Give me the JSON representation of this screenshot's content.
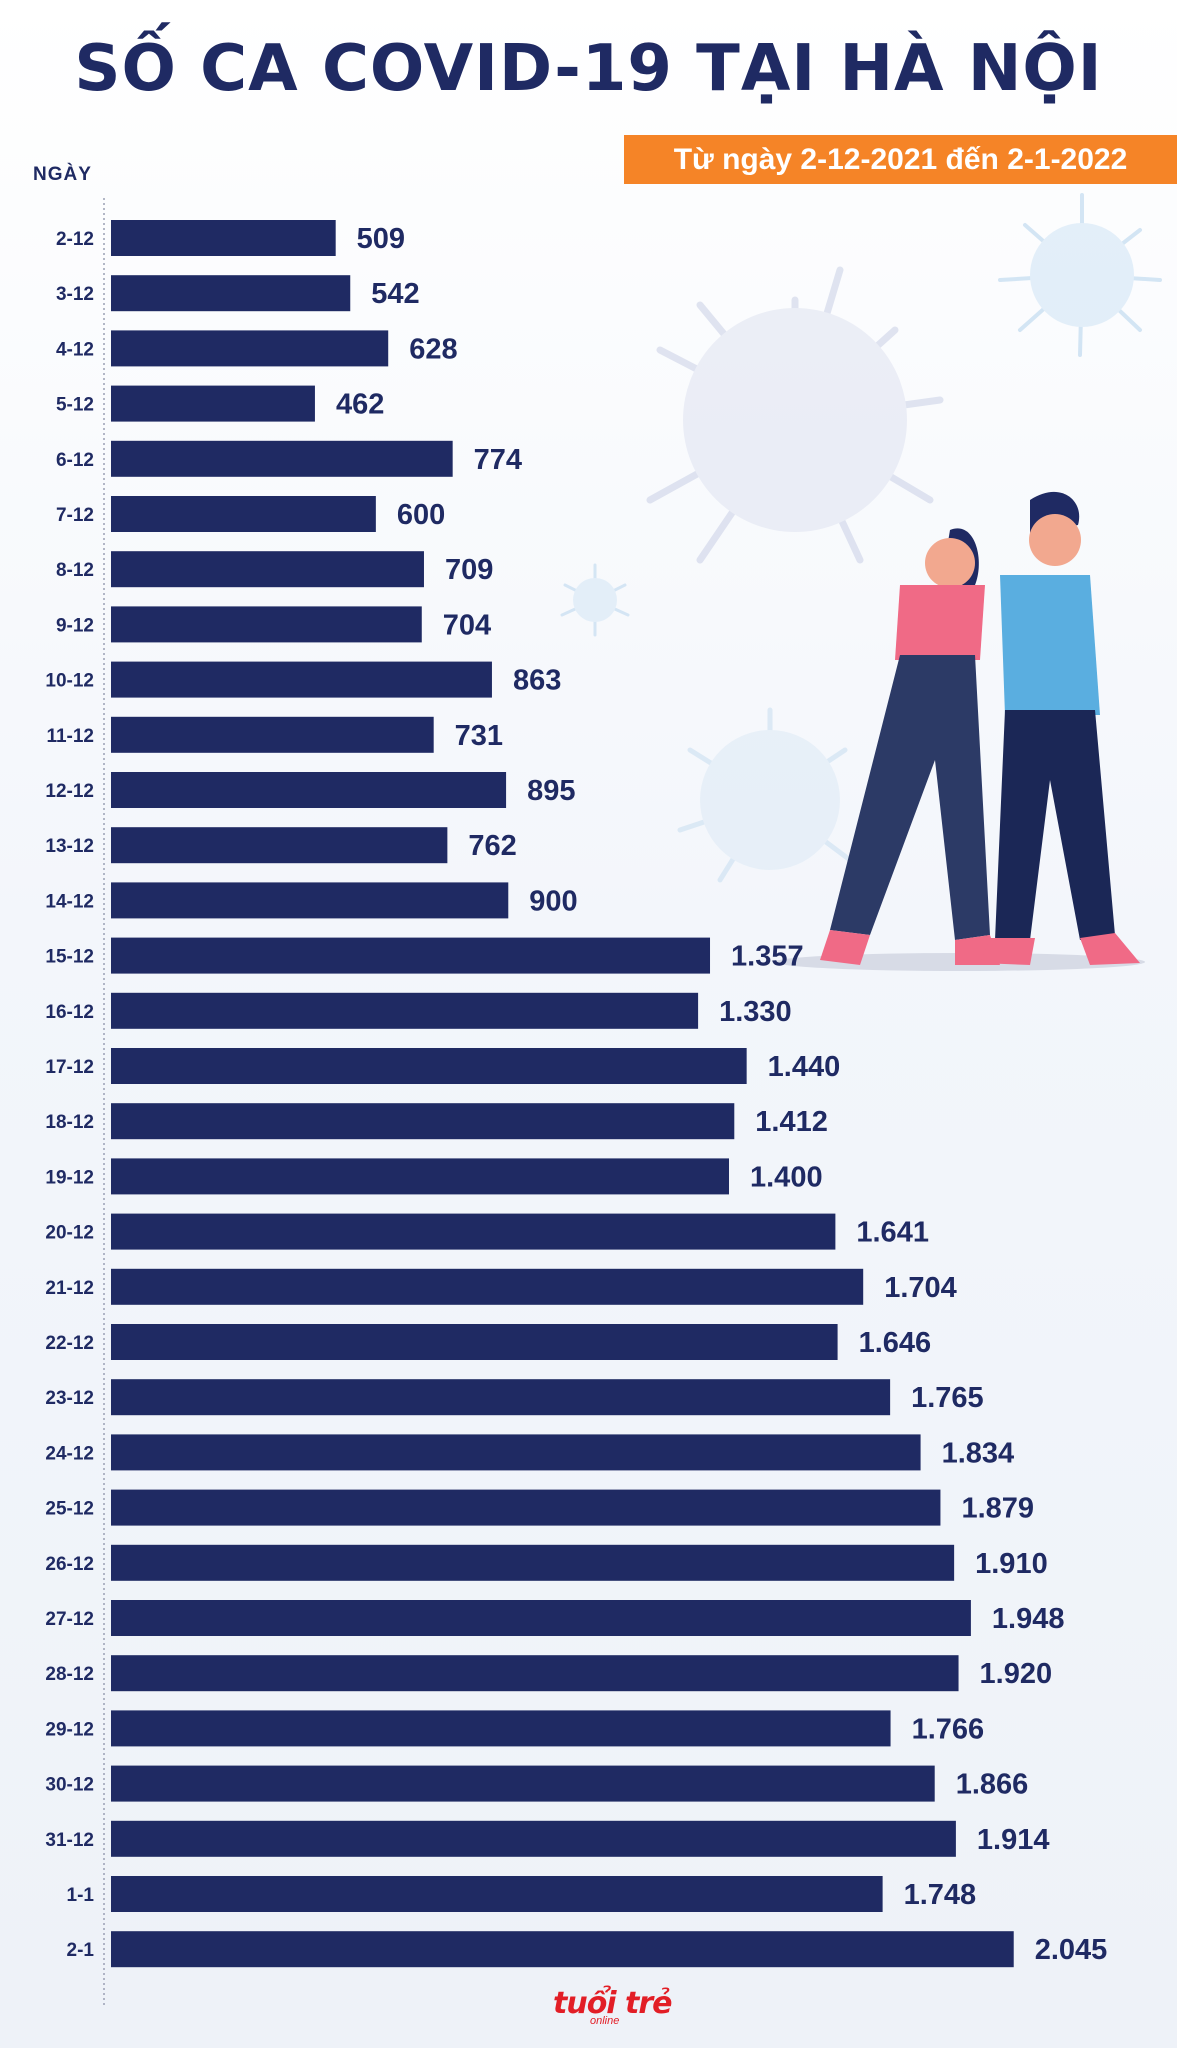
{
  "title": "SỐ CA COVID-19 TẠI HÀ NỘI",
  "subtitle": "Từ ngày 2-12-2021 đến 2-1-2022",
  "colors": {
    "bar": "#1f2a63",
    "accent": "#f58427",
    "logo": "#e21e26"
  },
  "logo": {
    "main": "tuổi trẻ",
    "sub": "online"
  },
  "chart_data": {
    "type": "bar",
    "orientation": "horizontal",
    "title": "SỐ CA COVID-19 TẠI HÀ NỘI",
    "subtitle": "Từ ngày 2-12-2021 đến 2-1-2022",
    "ylabel": "NGÀY",
    "xlabel": "",
    "xlim": [
      0,
      2100
    ],
    "categories": [
      "2-12",
      "3-12",
      "4-12",
      "5-12",
      "6-12",
      "7-12",
      "8-12",
      "9-12",
      "10-12",
      "11-12",
      "12-12",
      "13-12",
      "14-12",
      "15-12",
      "16-12",
      "17-12",
      "18-12",
      "19-12",
      "20-12",
      "21-12",
      "22-12",
      "23-12",
      "24-12",
      "25-12",
      "26-12",
      "27-12",
      "28-12",
      "29-12",
      "30-12",
      "31-12",
      "1-1",
      "2-1"
    ],
    "values": [
      509,
      542,
      628,
      462,
      774,
      600,
      709,
      704,
      863,
      731,
      895,
      762,
      900,
      1357,
      1330,
      1440,
      1412,
      1400,
      1641,
      1704,
      1646,
      1765,
      1834,
      1879,
      1910,
      1948,
      1920,
      1766,
      1866,
      1914,
      1748,
      2045
    ],
    "labels": [
      "509",
      "542",
      "628",
      "462",
      "774",
      "600",
      "709",
      "704",
      "863",
      "731",
      "895",
      "762",
      "900",
      "1.357",
      "1.330",
      "1.440",
      "1.412",
      "1.400",
      "1.641",
      "1.704",
      "1.646",
      "1.765",
      "1.834",
      "1.879",
      "1.910",
      "1.948",
      "1.920",
      "1.766",
      "1.866",
      "1.914",
      "1.748",
      "2.045"
    ]
  }
}
